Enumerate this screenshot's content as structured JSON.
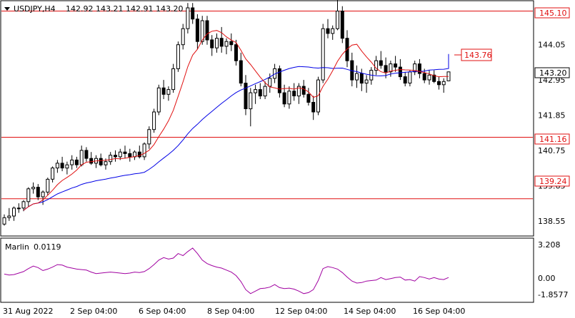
{
  "header": {
    "symbol_tf": "USDJPY,H4",
    "ohlc": "142.92 143.21 142.91 143.20"
  },
  "indicator": {
    "name": "Marlin",
    "value": "0.0119"
  },
  "colors": {
    "bull_body": "#ffffff",
    "bear_body": "#000000",
    "fast_ma": "#e01010",
    "slow_ma": "#0000e6",
    "levels": "#e01010",
    "oscillator": "#a000a0",
    "current_price_tag": "#ffffff"
  },
  "price_axis": {
    "ticks": [
      "144.05",
      "142.95",
      "141.85",
      "140.75",
      "139.65",
      "138.55"
    ],
    "range": [
      138.1,
      145.4
    ]
  },
  "osc_axis": {
    "ticks": [
      "3.208",
      "0.00",
      "-1.8577"
    ],
    "range": [
      -2.4,
      3.8
    ]
  },
  "time_axis": {
    "ticks": [
      "31 Aug 2022",
      "2 Sep 04:00",
      "6 Sep 04:00",
      "8 Sep 04:00",
      "12 Sep 04:00",
      "14 Sep 04:00",
      "16 Sep 04:00"
    ]
  },
  "price_tags": {
    "level_145": "145.10",
    "slow_ma": "143.76",
    "current": "143.20",
    "level_141": "141.16",
    "level_139": "139.24"
  },
  "chart_data": {
    "type": "candlestick",
    "symbol": "USDJPY",
    "timeframe": "H4",
    "levels": [
      145.1,
      141.16,
      139.24
    ],
    "last_close": 143.2,
    "slow_ma_last": 143.76,
    "candles": [
      [
        138.45,
        138.75,
        138.4,
        138.65
      ],
      [
        138.65,
        138.95,
        138.55,
        138.7
      ],
      [
        138.7,
        139.0,
        138.55,
        138.95
      ],
      [
        138.95,
        139.1,
        138.8,
        138.95
      ],
      [
        138.95,
        139.2,
        138.85,
        139.15
      ],
      [
        139.15,
        139.6,
        139.0,
        139.55
      ],
      [
        139.55,
        139.75,
        139.4,
        139.6
      ],
      [
        139.6,
        139.7,
        139.2,
        139.3
      ],
      [
        139.3,
        139.5,
        139.05,
        139.45
      ],
      [
        139.45,
        139.9,
        139.35,
        139.85
      ],
      [
        139.85,
        140.25,
        139.75,
        140.2
      ],
      [
        140.2,
        140.45,
        140.05,
        140.35
      ],
      [
        140.35,
        140.55,
        140.1,
        140.2
      ],
      [
        140.2,
        140.4,
        140.0,
        140.3
      ],
      [
        140.3,
        140.6,
        140.15,
        140.45
      ],
      [
        140.45,
        140.55,
        140.2,
        140.3
      ],
      [
        140.3,
        140.9,
        140.25,
        140.75
      ],
      [
        140.75,
        140.85,
        140.4,
        140.5
      ],
      [
        140.5,
        140.7,
        140.3,
        140.35
      ],
      [
        140.35,
        140.6,
        140.2,
        140.5
      ],
      [
        140.5,
        140.65,
        140.25,
        140.3
      ],
      [
        140.3,
        140.5,
        140.15,
        140.4
      ],
      [
        140.4,
        140.7,
        140.3,
        140.6
      ],
      [
        140.6,
        140.75,
        140.4,
        140.55
      ],
      [
        140.55,
        140.8,
        140.45,
        140.7
      ],
      [
        140.7,
        140.9,
        140.5,
        140.65
      ],
      [
        140.65,
        140.8,
        140.4,
        140.55
      ],
      [
        140.55,
        140.75,
        140.45,
        140.7
      ],
      [
        140.7,
        140.9,
        140.5,
        140.55
      ],
      [
        140.55,
        141.0,
        140.45,
        140.95
      ],
      [
        140.95,
        141.5,
        140.8,
        141.4
      ],
      [
        141.4,
        142.05,
        141.3,
        141.95
      ],
      [
        141.95,
        142.8,
        141.85,
        142.7
      ],
      [
        142.7,
        142.95,
        142.35,
        142.5
      ],
      [
        142.5,
        142.75,
        142.3,
        142.65
      ],
      [
        142.65,
        143.45,
        142.55,
        143.3
      ],
      [
        143.3,
        144.15,
        143.2,
        144.05
      ],
      [
        144.05,
        144.7,
        143.9,
        144.55
      ],
      [
        144.55,
        145.35,
        144.4,
        145.2
      ],
      [
        145.2,
        145.35,
        144.7,
        144.85
      ],
      [
        144.85,
        145.0,
        143.9,
        144.15
      ],
      [
        144.15,
        144.95,
        144.05,
        144.8
      ],
      [
        144.8,
        144.95,
        144.05,
        144.2
      ],
      [
        144.2,
        144.35,
        143.7,
        143.95
      ],
      [
        143.95,
        144.4,
        143.8,
        144.25
      ],
      [
        144.25,
        144.6,
        143.8,
        144.0
      ],
      [
        144.0,
        144.25,
        143.75,
        144.15
      ],
      [
        144.15,
        144.4,
        143.85,
        144.05
      ],
      [
        144.05,
        144.2,
        143.4,
        143.55
      ],
      [
        143.55,
        143.8,
        142.75,
        142.85
      ],
      [
        142.85,
        143.1,
        141.85,
        142.05
      ],
      [
        142.05,
        142.7,
        141.5,
        142.55
      ],
      [
        142.55,
        142.8,
        142.2,
        142.65
      ],
      [
        142.65,
        142.85,
        142.35,
        142.45
      ],
      [
        142.45,
        142.9,
        142.35,
        142.75
      ],
      [
        142.75,
        143.15,
        142.55,
        143.0
      ],
      [
        143.0,
        143.45,
        142.85,
        143.3
      ],
      [
        143.3,
        143.4,
        142.4,
        142.55
      ],
      [
        142.55,
        142.8,
        142.1,
        142.2
      ],
      [
        142.2,
        142.75,
        142.05,
        142.6
      ],
      [
        142.6,
        142.85,
        142.3,
        142.45
      ],
      [
        142.45,
        142.85,
        142.2,
        142.75
      ],
      [
        142.75,
        142.95,
        142.4,
        142.5
      ],
      [
        142.5,
        142.7,
        142.15,
        142.25
      ],
      [
        142.25,
        142.45,
        141.7,
        141.95
      ],
      [
        141.95,
        143.05,
        141.85,
        142.95
      ],
      [
        142.95,
        144.7,
        142.85,
        144.55
      ],
      [
        144.55,
        144.85,
        144.25,
        144.4
      ],
      [
        144.4,
        144.65,
        144.2,
        144.55
      ],
      [
        144.55,
        145.45,
        144.5,
        145.1
      ],
      [
        145.1,
        145.25,
        144.1,
        144.25
      ],
      [
        144.25,
        144.5,
        143.35,
        143.55
      ],
      [
        143.55,
        143.8,
        142.75,
        142.95
      ],
      [
        142.95,
        143.4,
        142.7,
        143.15
      ],
      [
        143.15,
        143.3,
        142.6,
        142.85
      ],
      [
        142.85,
        143.1,
        142.55,
        142.95
      ],
      [
        142.95,
        143.35,
        142.8,
        143.25
      ],
      [
        143.25,
        143.7,
        143.1,
        143.55
      ],
      [
        143.55,
        143.85,
        143.3,
        143.4
      ],
      [
        143.4,
        143.65,
        143.0,
        143.2
      ],
      [
        143.2,
        143.55,
        143.05,
        143.45
      ],
      [
        143.45,
        143.7,
        143.2,
        143.35
      ],
      [
        143.35,
        143.6,
        142.95,
        143.05
      ],
      [
        143.05,
        143.2,
        142.75,
        142.85
      ],
      [
        142.85,
        143.25,
        142.75,
        143.2
      ],
      [
        143.2,
        143.55,
        143.1,
        143.45
      ],
      [
        143.45,
        143.6,
        143.0,
        143.15
      ],
      [
        143.15,
        143.3,
        142.85,
        142.95
      ],
      [
        142.95,
        143.25,
        142.8,
        143.1
      ],
      [
        143.1,
        143.25,
        142.85,
        142.9
      ],
      [
        142.9,
        143.05,
        142.65,
        142.8
      ],
      [
        142.8,
        143.0,
        142.55,
        142.9
      ],
      [
        142.92,
        143.21,
        142.91,
        143.2
      ]
    ],
    "oscillator": [
      0.35,
      0.25,
      0.3,
      0.45,
      0.6,
      0.9,
      1.15,
      1.0,
      0.7,
      0.85,
      1.05,
      1.3,
      1.25,
      1.05,
      0.95,
      0.85,
      0.8,
      0.75,
      0.55,
      0.4,
      0.45,
      0.5,
      0.55,
      0.5,
      0.45,
      0.4,
      0.45,
      0.55,
      0.5,
      0.6,
      0.9,
      1.3,
      1.75,
      2.0,
      1.85,
      1.95,
      2.4,
      2.2,
      2.6,
      2.95,
      2.4,
      1.75,
      1.4,
      1.2,
      1.05,
      0.95,
      0.75,
      0.55,
      0.2,
      -0.4,
      -1.2,
      -1.6,
      -1.35,
      -1.1,
      -1.05,
      -0.95,
      -0.7,
      -1.0,
      -1.1,
      -1.05,
      -1.15,
      -1.35,
      -1.6,
      -1.5,
      -1.2,
      -0.3,
      0.9,
      1.1,
      1.0,
      0.85,
      0.5,
      0.05,
      -0.35,
      -0.55,
      -0.5,
      -0.35,
      -0.3,
      -0.25,
      0.0,
      -0.2,
      -0.1,
      0.0,
      0.05,
      -0.25,
      -0.2,
      -0.35,
      0.1,
      0.0,
      -0.15,
      0.0,
      -0.15,
      -0.2,
      0.01
    ]
  }
}
